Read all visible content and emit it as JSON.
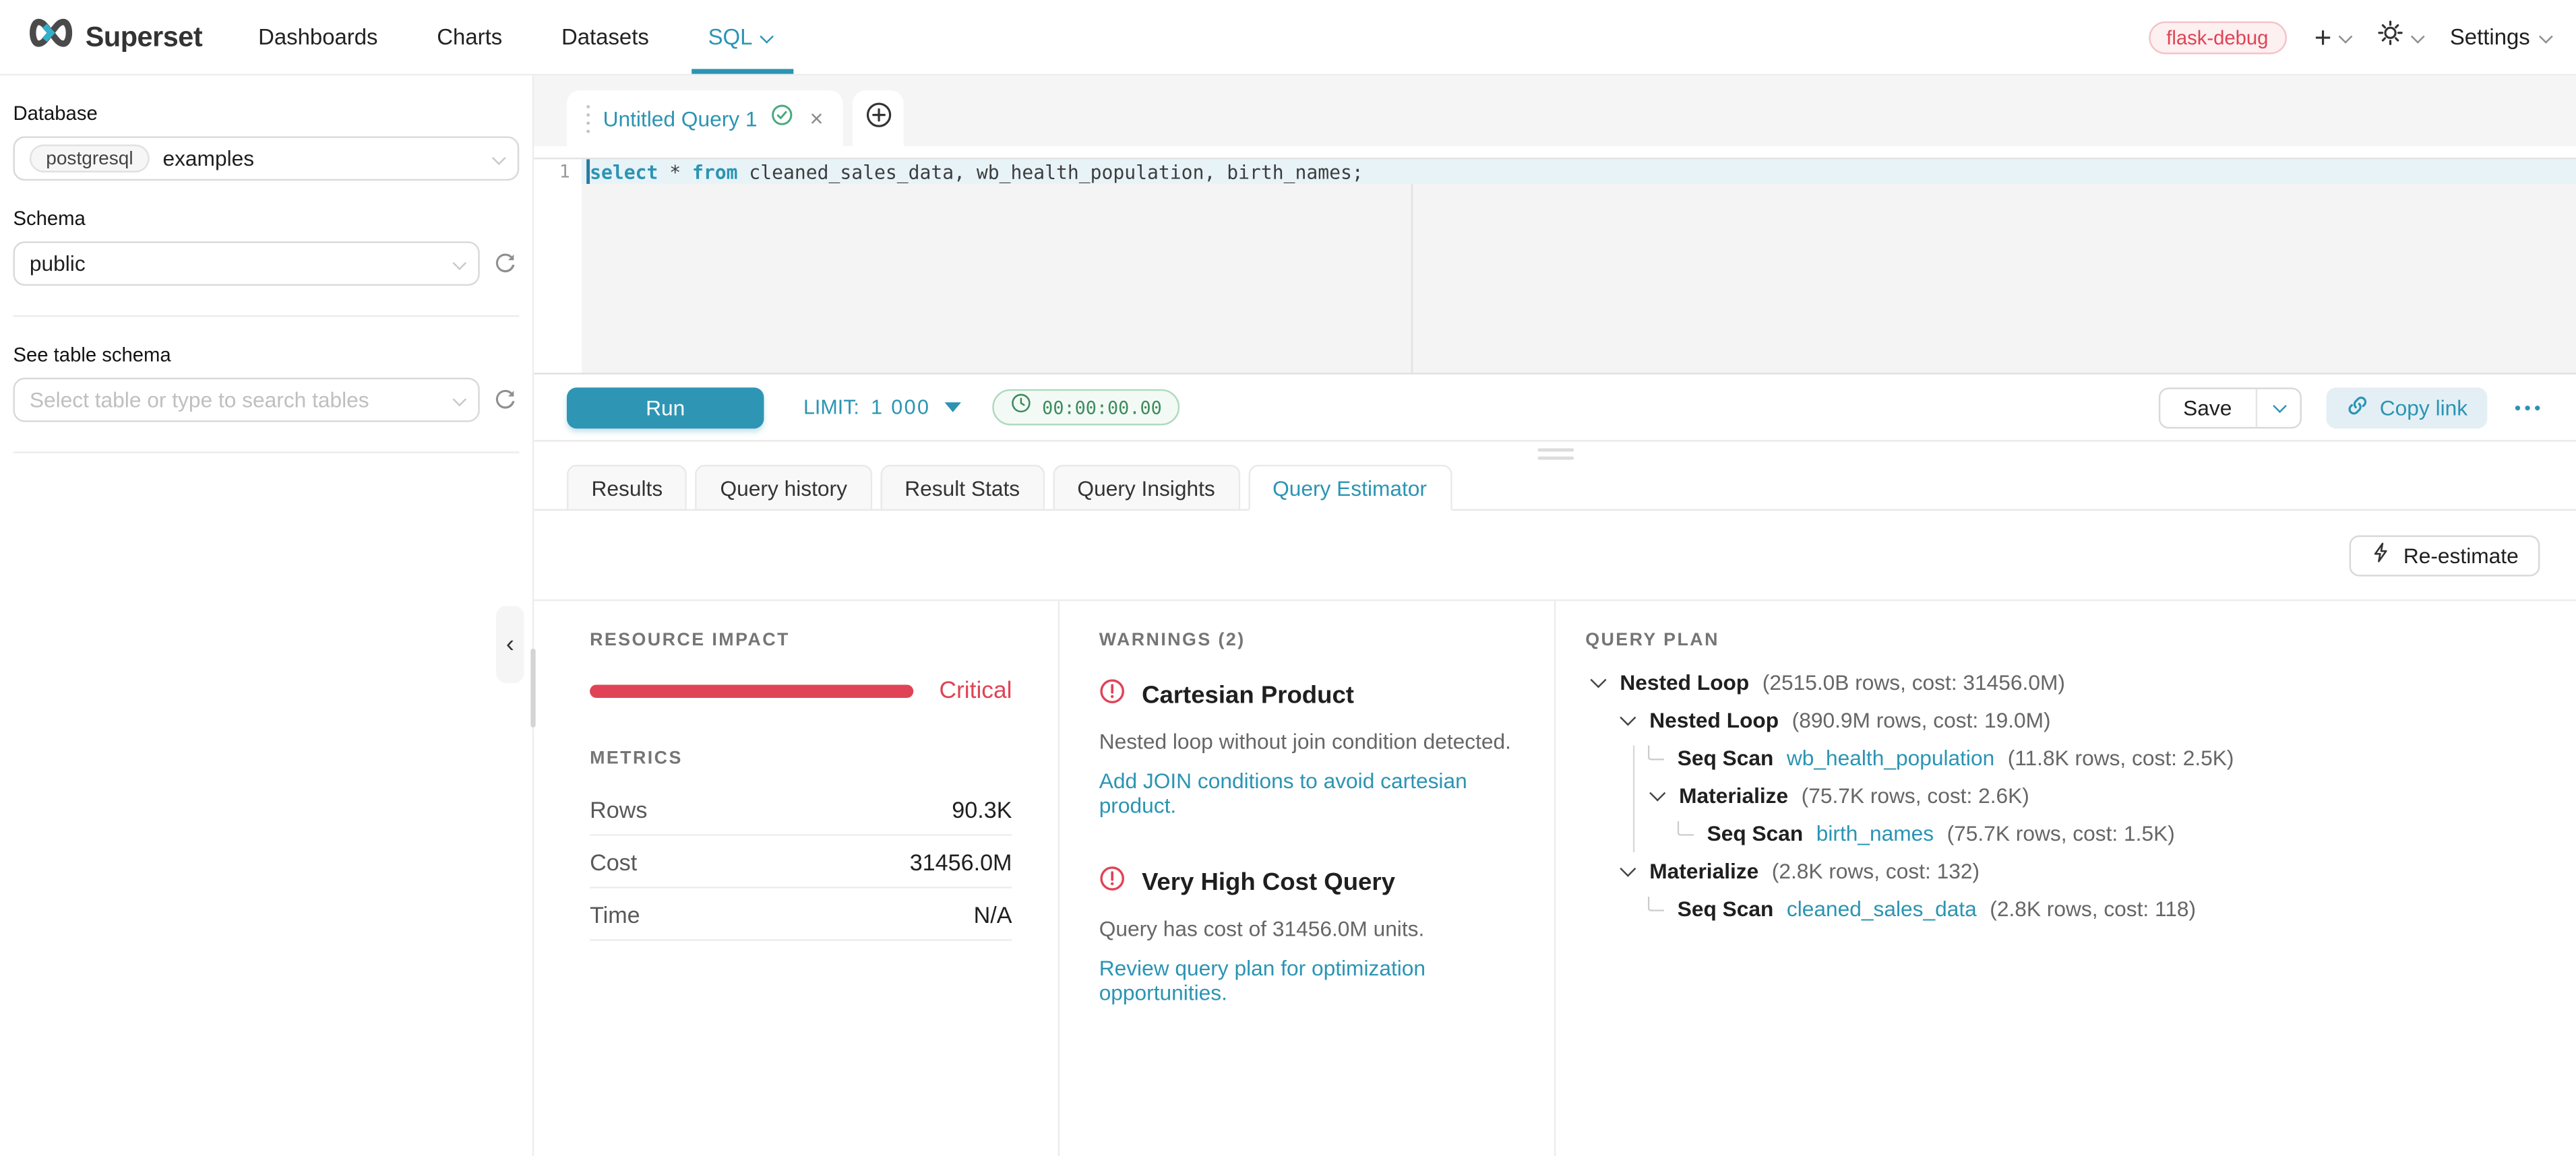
{
  "nav": {
    "brand": "Superset",
    "items": [
      "Dashboards",
      "Charts",
      "Datasets",
      "SQL"
    ],
    "active_item": "SQL",
    "env_badge": "flask-debug",
    "settings_label": "Settings"
  },
  "sidebar": {
    "database_label": "Database",
    "database_type": "postgresql",
    "database_value": "examples",
    "schema_label": "Schema",
    "schema_value": "public",
    "table_label": "See table schema",
    "table_placeholder": "Select table or type to search tables"
  },
  "editor": {
    "tab_title": "Untitled Query 1",
    "line_number": "1",
    "sql_text": "select * from cleaned_sales_data, wb_health_population, birth_names;",
    "sql_tokens": [
      {
        "type": "kw",
        "text": "select"
      },
      {
        "type": "plain",
        "text": " * "
      },
      {
        "type": "kw",
        "text": "from"
      },
      {
        "type": "plain",
        "text": " cleaned_sales_data, wb_health_population, birth_names;"
      }
    ]
  },
  "toolbar": {
    "run_label": "Run",
    "limit_label": "LIMIT:",
    "limit_value": "1 000",
    "timer": "00:00:00.00",
    "save_label": "Save",
    "copy_link_label": "Copy link"
  },
  "south_tabs": {
    "items": [
      "Results",
      "Query history",
      "Result Stats",
      "Query Insights",
      "Query Estimator"
    ],
    "active_index": 4
  },
  "estimator": {
    "reestimate_label": "Re-estimate",
    "resource_impact_header": "RESOURCE IMPACT",
    "impact_level": "Critical",
    "metrics_header": "METRICS",
    "metrics": [
      {
        "label": "Rows",
        "value": "90.3K"
      },
      {
        "label": "Cost",
        "value": "31456.0M"
      },
      {
        "label": "Time",
        "value": "N/A"
      }
    ],
    "warnings_header": "WARNINGS (2)",
    "warnings": [
      {
        "title": "Cartesian Product",
        "description": "Nested loop without join condition detected.",
        "link": "Add JOIN conditions to avoid cartesian product."
      },
      {
        "title": "Very High Cost Query",
        "description": "Query has cost of 31456.0M units.",
        "link": "Review query plan for optimization opportunities."
      }
    ],
    "plan_header": "QUERY PLAN",
    "plan": [
      {
        "depth": 0,
        "expandable": true,
        "op": "Nested Loop",
        "detail": "(2515.0B rows, cost: 31456.0M)"
      },
      {
        "depth": 1,
        "expandable": true,
        "op": "Nested Loop",
        "detail": "(890.9M rows, cost: 19.0M)"
      },
      {
        "depth": 2,
        "expandable": false,
        "op": "Seq Scan",
        "table": "wb_health_population",
        "detail": "(11.8K rows, cost: 2.5K)"
      },
      {
        "depth": 2,
        "expandable": true,
        "op": "Materialize",
        "detail": "(75.7K rows, cost: 2.6K)"
      },
      {
        "depth": 3,
        "expandable": false,
        "op": "Seq Scan",
        "table": "birth_names",
        "detail": "(75.7K rows, cost: 1.5K)"
      },
      {
        "depth": 1,
        "expandable": true,
        "op": "Materialize",
        "detail": "(2.8K rows, cost: 132)"
      },
      {
        "depth": 2,
        "expandable": false,
        "op": "Seq Scan",
        "table": "cleaned_sales_data",
        "detail": "(2.8K rows, cost: 118)"
      }
    ]
  },
  "colors": {
    "primary": "#2b94b3",
    "danger": "#e04355",
    "success": "#3d8b5f"
  },
  "icons": {
    "logo": "superset-infinity",
    "nav_caret": "chevron-down",
    "new_menu": "plus",
    "theme": "sun",
    "tab_drag": "drag-dots",
    "tab_status": "check-circle",
    "tab_close": "close-x",
    "add_tab": "circle-plus",
    "timer": "clock",
    "copy_link": "link",
    "more": "ellipsis-dots",
    "refresh": "sync-arrow",
    "collapse": "chevron-left",
    "reestimate": "lightning-bolt",
    "warning": "exclamation-circle"
  }
}
